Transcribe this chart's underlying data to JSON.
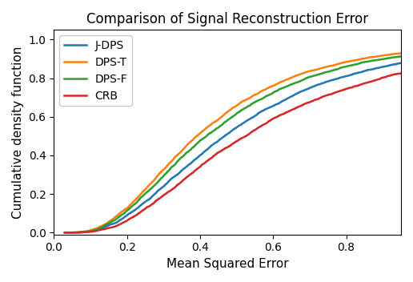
{
  "title": "Comparison of Signal Reconstruction Error",
  "xlabel": "Mean Squared Error",
  "ylabel": "Cumulative density function",
  "colors": {
    "J-DPS": "#1f77b4",
    "DPS-T": "#ff7f0e",
    "DPS-F": "#2ca02c",
    "CRB": "#d62728"
  },
  "series_order": [
    "J-DPS",
    "DPS-T",
    "DPS-F",
    "CRB"
  ],
  "xlim": [
    0.0,
    0.95
  ],
  "ylim": [
    -0.01,
    1.05
  ],
  "xticks": [
    0.0,
    0.2,
    0.4,
    0.6,
    0.8
  ],
  "yticks": [
    0.0,
    0.2,
    0.4,
    0.6,
    0.8,
    1.0
  ],
  "linewidth": 1.8,
  "legend_loc": "upper left",
  "title_fontsize": 12,
  "axis_fontsize": 11,
  "legend_fontsize": 10,
  "params": {
    "J-DPS": {
      "mu": -0.78,
      "sigma": 0.62
    },
    "DPS-T": {
      "mu": -0.92,
      "sigma": 0.6
    },
    "DPS-F": {
      "mu": -0.85,
      "sigma": 0.61
    },
    "CRB": {
      "mu": -0.65,
      "sigma": 0.65
    }
  }
}
